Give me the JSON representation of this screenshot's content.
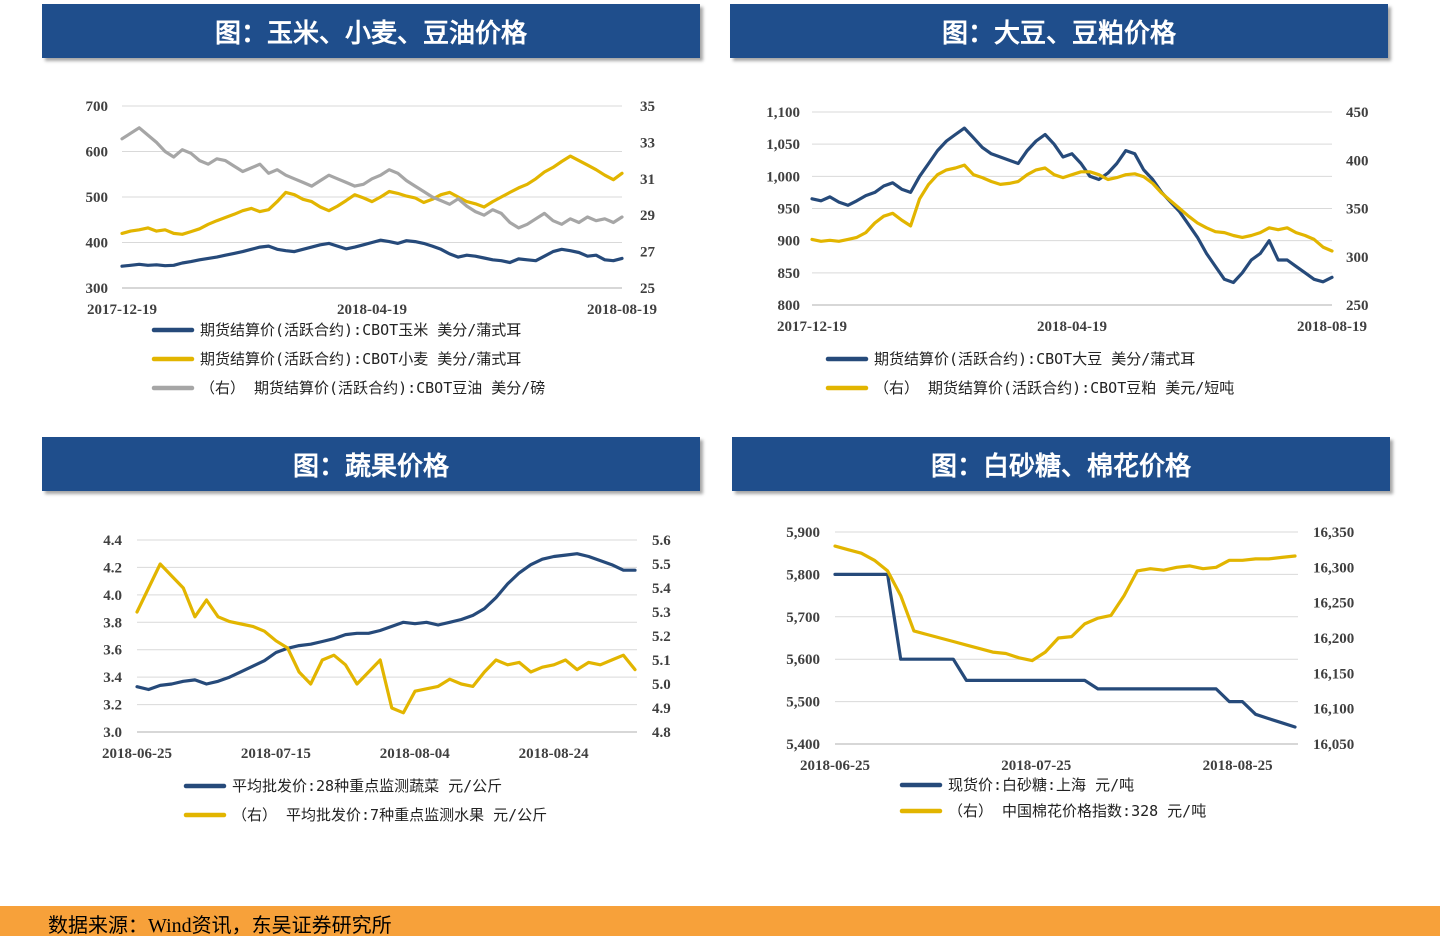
{
  "source": "数据来源：Wind资讯，东吴证券研究所",
  "chart_data": [
    {
      "id": "grain",
      "type": "line",
      "title": "图：玉米、小麦、豆油价格",
      "ylim": [
        300,
        700
      ],
      "yticks": [
        "700",
        "600",
        "500",
        "400",
        "300"
      ],
      "y2lim": [
        25,
        35
      ],
      "y2ticks": [
        "35",
        "33",
        "31",
        "29",
        "27",
        "25"
      ],
      "xticks": [
        "2017-12-19",
        "2018-04-19",
        "2018-08-19"
      ],
      "series": [
        {
          "name": "期货结算价(活跃合约):CBOT玉米  美分/蒲式耳",
          "axis": "left",
          "color": "#264a7a",
          "values": [
            348,
            350,
            352,
            350,
            351,
            349,
            350,
            355,
            358,
            362,
            365,
            368,
            372,
            376,
            380,
            385,
            390,
            392,
            385,
            382,
            380,
            385,
            390,
            395,
            398,
            392,
            386,
            390,
            395,
            400,
            405,
            402,
            398,
            404,
            402,
            398,
            392,
            385,
            375,
            368,
            372,
            370,
            366,
            362,
            360,
            356,
            364,
            362,
            360,
            370,
            380,
            385,
            382,
            378,
            370,
            372,
            362,
            360,
            365
          ]
        },
        {
          "name": "期货结算价(活跃合约):CBOT小麦  美分/蒲式耳",
          "axis": "left",
          "color": "#e2b500",
          "values": [
            420,
            425,
            428,
            432,
            425,
            428,
            420,
            418,
            424,
            430,
            440,
            448,
            455,
            462,
            470,
            475,
            468,
            472,
            490,
            510,
            505,
            495,
            490,
            478,
            470,
            480,
            492,
            505,
            498,
            490,
            500,
            512,
            508,
            502,
            498,
            488,
            495,
            505,
            510,
            500,
            490,
            485,
            478,
            490,
            500,
            510,
            520,
            528,
            540,
            555,
            565,
            578,
            590,
            580,
            570,
            560,
            548,
            538,
            552
          ]
        },
        {
          "name": "（右） 期货结算价(活跃合约):CBOT豆油  美分/磅",
          "axis": "right",
          "color": "#a6a6a6",
          "values": [
            33.2,
            33.5,
            33.8,
            33.4,
            33.0,
            32.5,
            32.2,
            32.6,
            32.4,
            32.0,
            31.8,
            32.1,
            32.0,
            31.7,
            31.4,
            31.6,
            31.8,
            31.3,
            31.5,
            31.2,
            31.0,
            30.8,
            30.6,
            30.9,
            31.2,
            31.0,
            30.8,
            30.6,
            30.7,
            31.0,
            31.2,
            31.5,
            31.3,
            30.9,
            30.6,
            30.3,
            30.0,
            29.8,
            29.6,
            29.9,
            29.5,
            29.2,
            29.0,
            29.3,
            29.1,
            28.6,
            28.3,
            28.5,
            28.8,
            29.1,
            28.7,
            28.5,
            28.8,
            28.6,
            28.9,
            28.7,
            28.8,
            28.6,
            28.9
          ]
        }
      ]
    },
    {
      "id": "soy",
      "type": "line",
      "title": "图：大豆、豆粕价格",
      "ylim": [
        800,
        1100
      ],
      "yticks": [
        "1,100",
        "1,050",
        "1,000",
        "950",
        "900",
        "850",
        "800"
      ],
      "y2lim": [
        250,
        450
      ],
      "y2ticks": [
        "450",
        "400",
        "350",
        "300",
        "250"
      ],
      "xticks": [
        "2017-12-19",
        "2018-04-19",
        "2018-08-19"
      ],
      "series": [
        {
          "name": "期货结算价(活跃合约):CBOT大豆  美分/蒲式耳",
          "axis": "left",
          "color": "#264a7a",
          "values": [
            965,
            962,
            968,
            960,
            955,
            962,
            970,
            975,
            985,
            990,
            980,
            975,
            1000,
            1020,
            1040,
            1055,
            1065,
            1075,
            1060,
            1045,
            1035,
            1030,
            1025,
            1020,
            1040,
            1055,
            1065,
            1050,
            1030,
            1035,
            1020,
            1000,
            995,
            1005,
            1020,
            1040,
            1035,
            1010,
            995,
            975,
            960,
            945,
            925,
            905,
            880,
            860,
            840,
            835,
            850,
            870,
            880,
            900,
            870,
            870,
            860,
            850,
            840,
            836,
            843
          ]
        },
        {
          "name": "（右） 期货结算价(活跃合约):CBOT豆粕  美元/短吨",
          "axis": "right",
          "color": "#e2b500",
          "values": [
            318,
            316,
            317,
            316,
            318,
            320,
            325,
            335,
            342,
            345,
            338,
            332,
            360,
            375,
            385,
            390,
            392,
            395,
            385,
            382,
            378,
            375,
            376,
            378,
            385,
            390,
            392,
            385,
            382,
            385,
            388,
            388,
            385,
            380,
            382,
            385,
            386,
            383,
            376,
            366,
            358,
            350,
            342,
            335,
            330,
            326,
            325,
            322,
            320,
            322,
            325,
            330,
            328,
            330,
            325,
            322,
            318,
            310,
            306
          ]
        }
      ]
    },
    {
      "id": "vegfruit",
      "type": "line",
      "title": "图：蔬果价格",
      "ylim": [
        3.0,
        4.4
      ],
      "yticks": [
        "4.4",
        "4.2",
        "4.0",
        "3.8",
        "3.6",
        "3.4",
        "3.2",
        "3.0"
      ],
      "y2lim": [
        4.8,
        5.6
      ],
      "y2ticks": [
        "5.6",
        "5.5",
        "5.4",
        "5.3",
        "5.2",
        "5.1",
        "5.0",
        "4.9",
        "4.8"
      ],
      "xticks": [
        "2018-06-25",
        "2018-07-15",
        "2018-08-04",
        "2018-08-24"
      ],
      "series": [
        {
          "name": "平均批发价:28种重点监测蔬菜  元/公斤",
          "axis": "left",
          "color": "#264a7a",
          "values": [
            3.33,
            3.31,
            3.34,
            3.35,
            3.37,
            3.38,
            3.35,
            3.37,
            3.4,
            3.44,
            3.48,
            3.52,
            3.58,
            3.61,
            3.63,
            3.64,
            3.66,
            3.68,
            3.71,
            3.72,
            3.72,
            3.74,
            3.77,
            3.8,
            3.79,
            3.8,
            3.78,
            3.8,
            3.82,
            3.85,
            3.9,
            3.98,
            4.08,
            4.16,
            4.22,
            4.26,
            4.28,
            4.29,
            4.3,
            4.28,
            4.25,
            4.22,
            4.18,
            4.18
          ]
        },
        {
          "name": "（右） 平均批发价:7种重点监测水果  元/公斤",
          "axis": "right",
          "color": "#e2b500",
          "values": [
            5.3,
            5.4,
            5.5,
            5.45,
            5.4,
            5.28,
            5.35,
            5.28,
            5.26,
            5.25,
            5.24,
            5.22,
            5.18,
            5.15,
            5.05,
            5.0,
            5.1,
            5.12,
            5.08,
            5.0,
            5.05,
            5.1,
            4.9,
            4.88,
            4.97,
            4.98,
            4.99,
            5.02,
            5.0,
            4.99,
            5.05,
            5.1,
            5.08,
            5.09,
            5.05,
            5.07,
            5.08,
            5.1,
            5.06,
            5.09,
            5.08,
            5.1,
            5.12,
            5.06
          ]
        }
      ]
    },
    {
      "id": "sugarcotton",
      "type": "line",
      "title": "图：白砂糖、棉花价格",
      "ylim": [
        5400,
        5900
      ],
      "yticks": [
        "5,900",
        "5,800",
        "5,700",
        "5,600",
        "5,500",
        "5,400"
      ],
      "y2lim": [
        16050,
        16350
      ],
      "y2ticks": [
        "16,350",
        "16,300",
        "16,250",
        "16,200",
        "16,150",
        "16,100",
        "16,050"
      ],
      "xticks": [
        "2018-06-25",
        "2018-07-25",
        "2018-08-25"
      ],
      "series": [
        {
          "name": "现货价:白砂糖:上海  元/吨",
          "axis": "left",
          "color": "#264a7a",
          "values": [
            5800,
            5800,
            5800,
            5800,
            5800,
            5600,
            5600,
            5600,
            5600,
            5600,
            5550,
            5550,
            5550,
            5550,
            5550,
            5550,
            5550,
            5550,
            5550,
            5550,
            5530,
            5530,
            5530,
            5530,
            5530,
            5530,
            5530,
            5530,
            5530,
            5530,
            5500,
            5500,
            5470,
            5460,
            5450,
            5440
          ]
        },
        {
          "name": "（右） 中国棉花价格指数:328  元/吨",
          "axis": "right",
          "color": "#e2b500",
          "values": [
            16330,
            16325,
            16320,
            16310,
            16295,
            16260,
            16210,
            16205,
            16200,
            16195,
            16190,
            16185,
            16180,
            16178,
            16172,
            16168,
            16180,
            16200,
            16202,
            16220,
            16228,
            16232,
            16260,
            16295,
            16298,
            16296,
            16300,
            16302,
            16298,
            16300,
            16310,
            16310,
            16312,
            16312,
            16314,
            16316
          ]
        }
      ]
    }
  ],
  "colors": {
    "header_bg": "#1f4e8c",
    "footer_bg": "#f7a13a",
    "grid": "#d9d9d9"
  }
}
